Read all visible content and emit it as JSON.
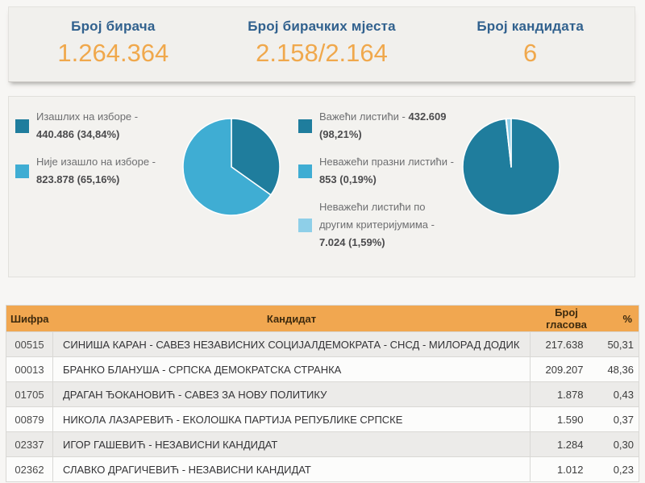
{
  "header": {
    "label_color": "#31618e",
    "value_color": "#f0a84c",
    "stats": [
      {
        "label": "Број бирача",
        "value": "1.264.364"
      },
      {
        "label": "Број бирачких мјеста",
        "value": "2.158/2.164"
      },
      {
        "label": "Број кандидата",
        "value": "6"
      }
    ]
  },
  "chart_data": [
    {
      "type": "pie",
      "name": "turnout",
      "start_angle_deg": 0,
      "direction": "clockwise",
      "legend_position": "left",
      "slices": [
        {
          "label": "Изашлих на изборе",
          "value": 440486,
          "percent": 34.84,
          "display": "440.486 (34,84%)",
          "color": "#1f7d9d"
        },
        {
          "label": "Није изашло на изборе",
          "value": 823878,
          "percent": 65.16,
          "display": "823.878 (65,16%)",
          "color": "#3fadd3"
        }
      ],
      "legend": [
        {
          "color": "#1f7d9d",
          "lines": [
            [
              {
                "text": "Изашлих на изборе -",
                "bold": false
              }
            ],
            [
              {
                "text": "440.486 (34,84%)",
                "bold": true
              }
            ]
          ]
        },
        {
          "color": "#3fadd3",
          "lines": [
            [
              {
                "text": "Није изашло на изборе -",
                "bold": false
              }
            ],
            [
              {
                "text": "823.878 (65,16%)",
                "bold": true
              }
            ]
          ]
        }
      ]
    },
    {
      "type": "pie",
      "name": "ballots",
      "start_angle_deg": 0,
      "direction": "clockwise",
      "legend_position": "left",
      "slices": [
        {
          "label": "Важећи листићи",
          "value": 432609,
          "percent": 98.21,
          "display": "432.609 (98,21%)",
          "color": "#1f7d9d"
        },
        {
          "label": "Неважећи празни листићи",
          "value": 853,
          "percent": 0.19,
          "display": "853 (0,19%)",
          "color": "#3fadd3"
        },
        {
          "label": "Неважећи листићи по другим критеријумима",
          "value": 7024,
          "percent": 1.59,
          "display": "7.024 (1,59%)",
          "color": "#8ecfe8"
        }
      ],
      "legend": [
        {
          "color": "#1f7d9d",
          "lines": [
            [
              {
                "text": "Важећи листићи - ",
                "bold": false
              },
              {
                "text": "432.609",
                "bold": true
              }
            ],
            [
              {
                "text": "(98,21%)",
                "bold": true
              }
            ]
          ]
        },
        {
          "color": "#3fadd3",
          "lines": [
            [
              {
                "text": "Неважећи празни листићи -",
                "bold": false
              }
            ],
            [
              {
                "text": "853 (0,19%)",
                "bold": true
              }
            ]
          ]
        },
        {
          "color": "#8ecfe8",
          "lines": [
            [
              {
                "text": "Неважећи листићи по",
                "bold": false
              }
            ],
            [
              {
                "text": "другим критеријумима -",
                "bold": false
              }
            ],
            [
              {
                "text": "7.024 (1,59%)",
                "bold": true
              }
            ]
          ]
        }
      ]
    }
  ],
  "table": {
    "header_bg": "#f1a750",
    "columns": [
      "Шифра",
      "Кандидат",
      "Број гласова",
      "%"
    ],
    "rows": [
      {
        "code": "00515",
        "name": "СИНИША КАРАН - САВЕЗ НЕЗАВИСНИХ СОЦИЈАЛДЕМОКРАТА - СНСД - МИЛОРАД ДОДИК",
        "votes": "217.638",
        "pct": "50,31"
      },
      {
        "code": "00013",
        "name": "БРАНКО БЛАНУША - СРПСКА ДЕМОКРАТСКА СТРАНКА",
        "votes": "209.207",
        "pct": "48,36"
      },
      {
        "code": "01705",
        "name": "ДРАГАН ЂОКАНОВИЋ - САВЕЗ ЗА НОВУ ПОЛИТИКУ",
        "votes": "1.878",
        "pct": "0,43"
      },
      {
        "code": "00879",
        "name": "НИКОЛА ЛАЗАРЕВИЋ - ЕКОЛОШКА ПАРТИЈА РЕПУБЛИКЕ СРПСКЕ",
        "votes": "1.590",
        "pct": "0,37"
      },
      {
        "code": "02337",
        "name": "ИГОР ГАШЕВИЋ - НЕЗАВИСНИ КАНДИДАТ",
        "votes": "1.284",
        "pct": "0,30"
      },
      {
        "code": "02362",
        "name": "СЛАВКО ДРАГИЧЕВИЋ - НЕЗАВИСНИ КАНДИДАТ",
        "votes": "1.012",
        "pct": "0,23"
      }
    ]
  }
}
